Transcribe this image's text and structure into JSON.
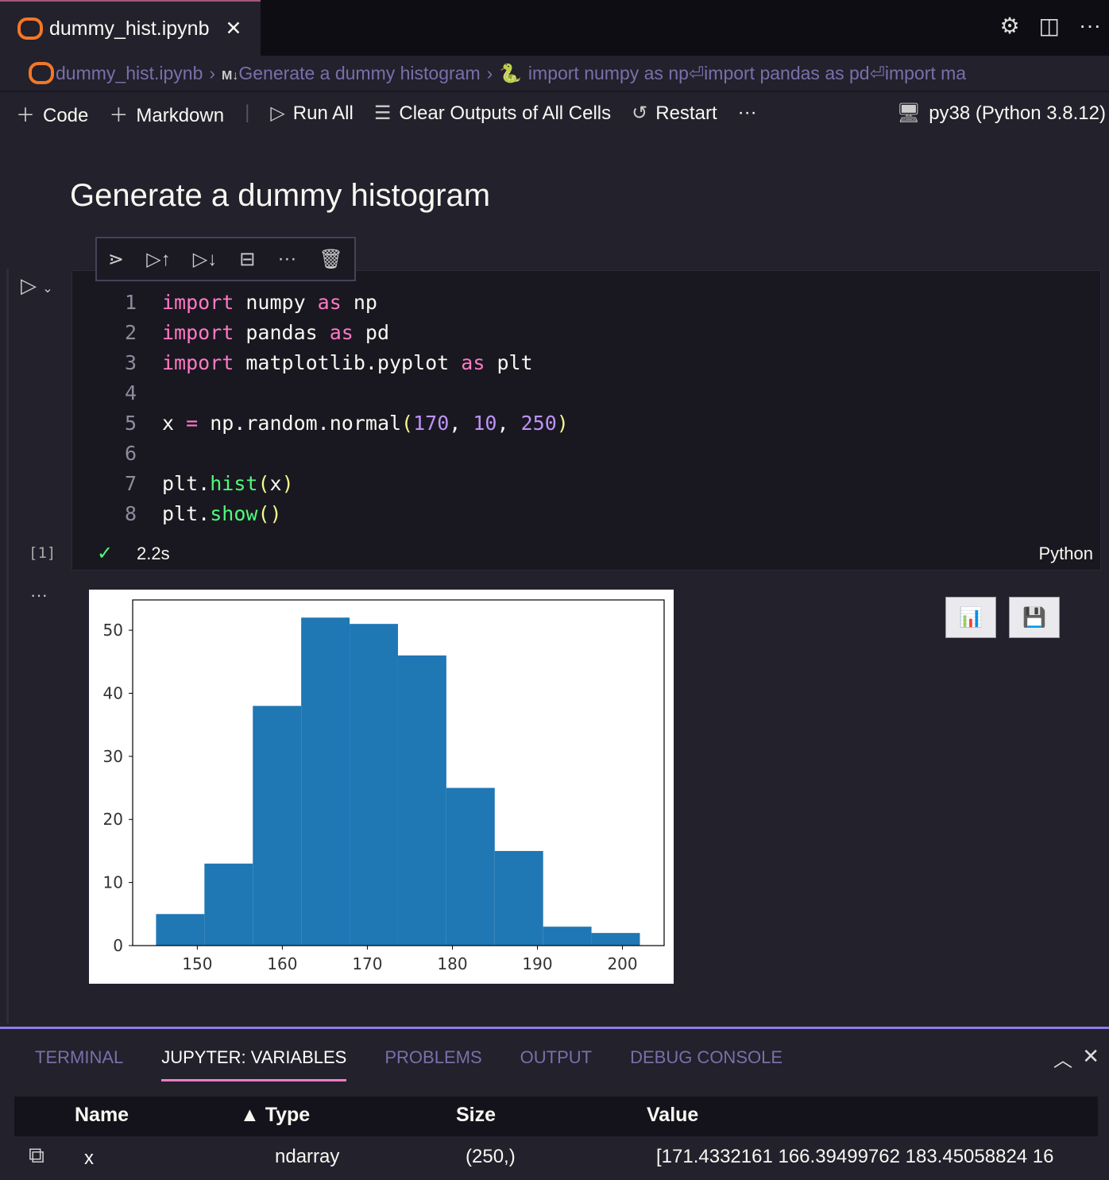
{
  "tab": {
    "title": "dummy_hist.ipynb",
    "close": "✕"
  },
  "breadcrumb": {
    "file": "dummy_hist.ipynb",
    "md_badge": "M↓",
    "section": "Generate a dummy histogram",
    "cell": "import numpy as np⏎import pandas as pd⏎import ma"
  },
  "toolbar": {
    "code": "Code",
    "markdown": "Markdown",
    "run_all": "Run All",
    "clear": "Clear Outputs of All Cells",
    "restart": "Restart",
    "more": "···",
    "kernel": "py38 (Python 3.8.12)"
  },
  "markdown_heading": "Generate a dummy histogram",
  "cell": {
    "exec_count": "[1]",
    "status": "2.2s",
    "language": "Python",
    "more": "···"
  },
  "code_lines": [
    "1",
    "2",
    "3",
    "4",
    "5",
    "6",
    "7",
    "8"
  ],
  "panel": {
    "tabs": [
      "TERMINAL",
      "JUPYTER: VARIABLES",
      "PROBLEMS",
      "OUTPUT",
      "DEBUG CONSOLE"
    ],
    "active": "JUPYTER: VARIABLES",
    "columns": [
      "Name",
      "▲ Type",
      "Size",
      "Value"
    ],
    "rows": [
      {
        "name": "x",
        "type": "ndarray",
        "size": "(250,)",
        "value": "[171.4332161 166.39499762 183.45058824 16"
      }
    ]
  },
  "colors": {
    "accent": "#8b7fe8",
    "bar": "#1f77b4",
    "keyword": "#ff79c6",
    "number": "#bd93f9"
  },
  "chart_data": {
    "type": "bar",
    "title": "",
    "xlabel": "",
    "ylabel": "",
    "bin_edges": [
      145.15,
      150.84,
      156.53,
      162.22,
      167.91,
      173.6,
      179.29,
      184.98,
      190.67,
      196.36,
      202.05
    ],
    "values": [
      5,
      13,
      38,
      52,
      51,
      46,
      25,
      15,
      3,
      2
    ],
    "xlim": [
      142.4,
      204.9
    ],
    "ylim": [
      0,
      54.8
    ],
    "xticks": [
      150,
      160,
      170,
      180,
      190,
      200
    ],
    "yticks": [
      0,
      10,
      20,
      30,
      40,
      50
    ],
    "grid": false
  }
}
